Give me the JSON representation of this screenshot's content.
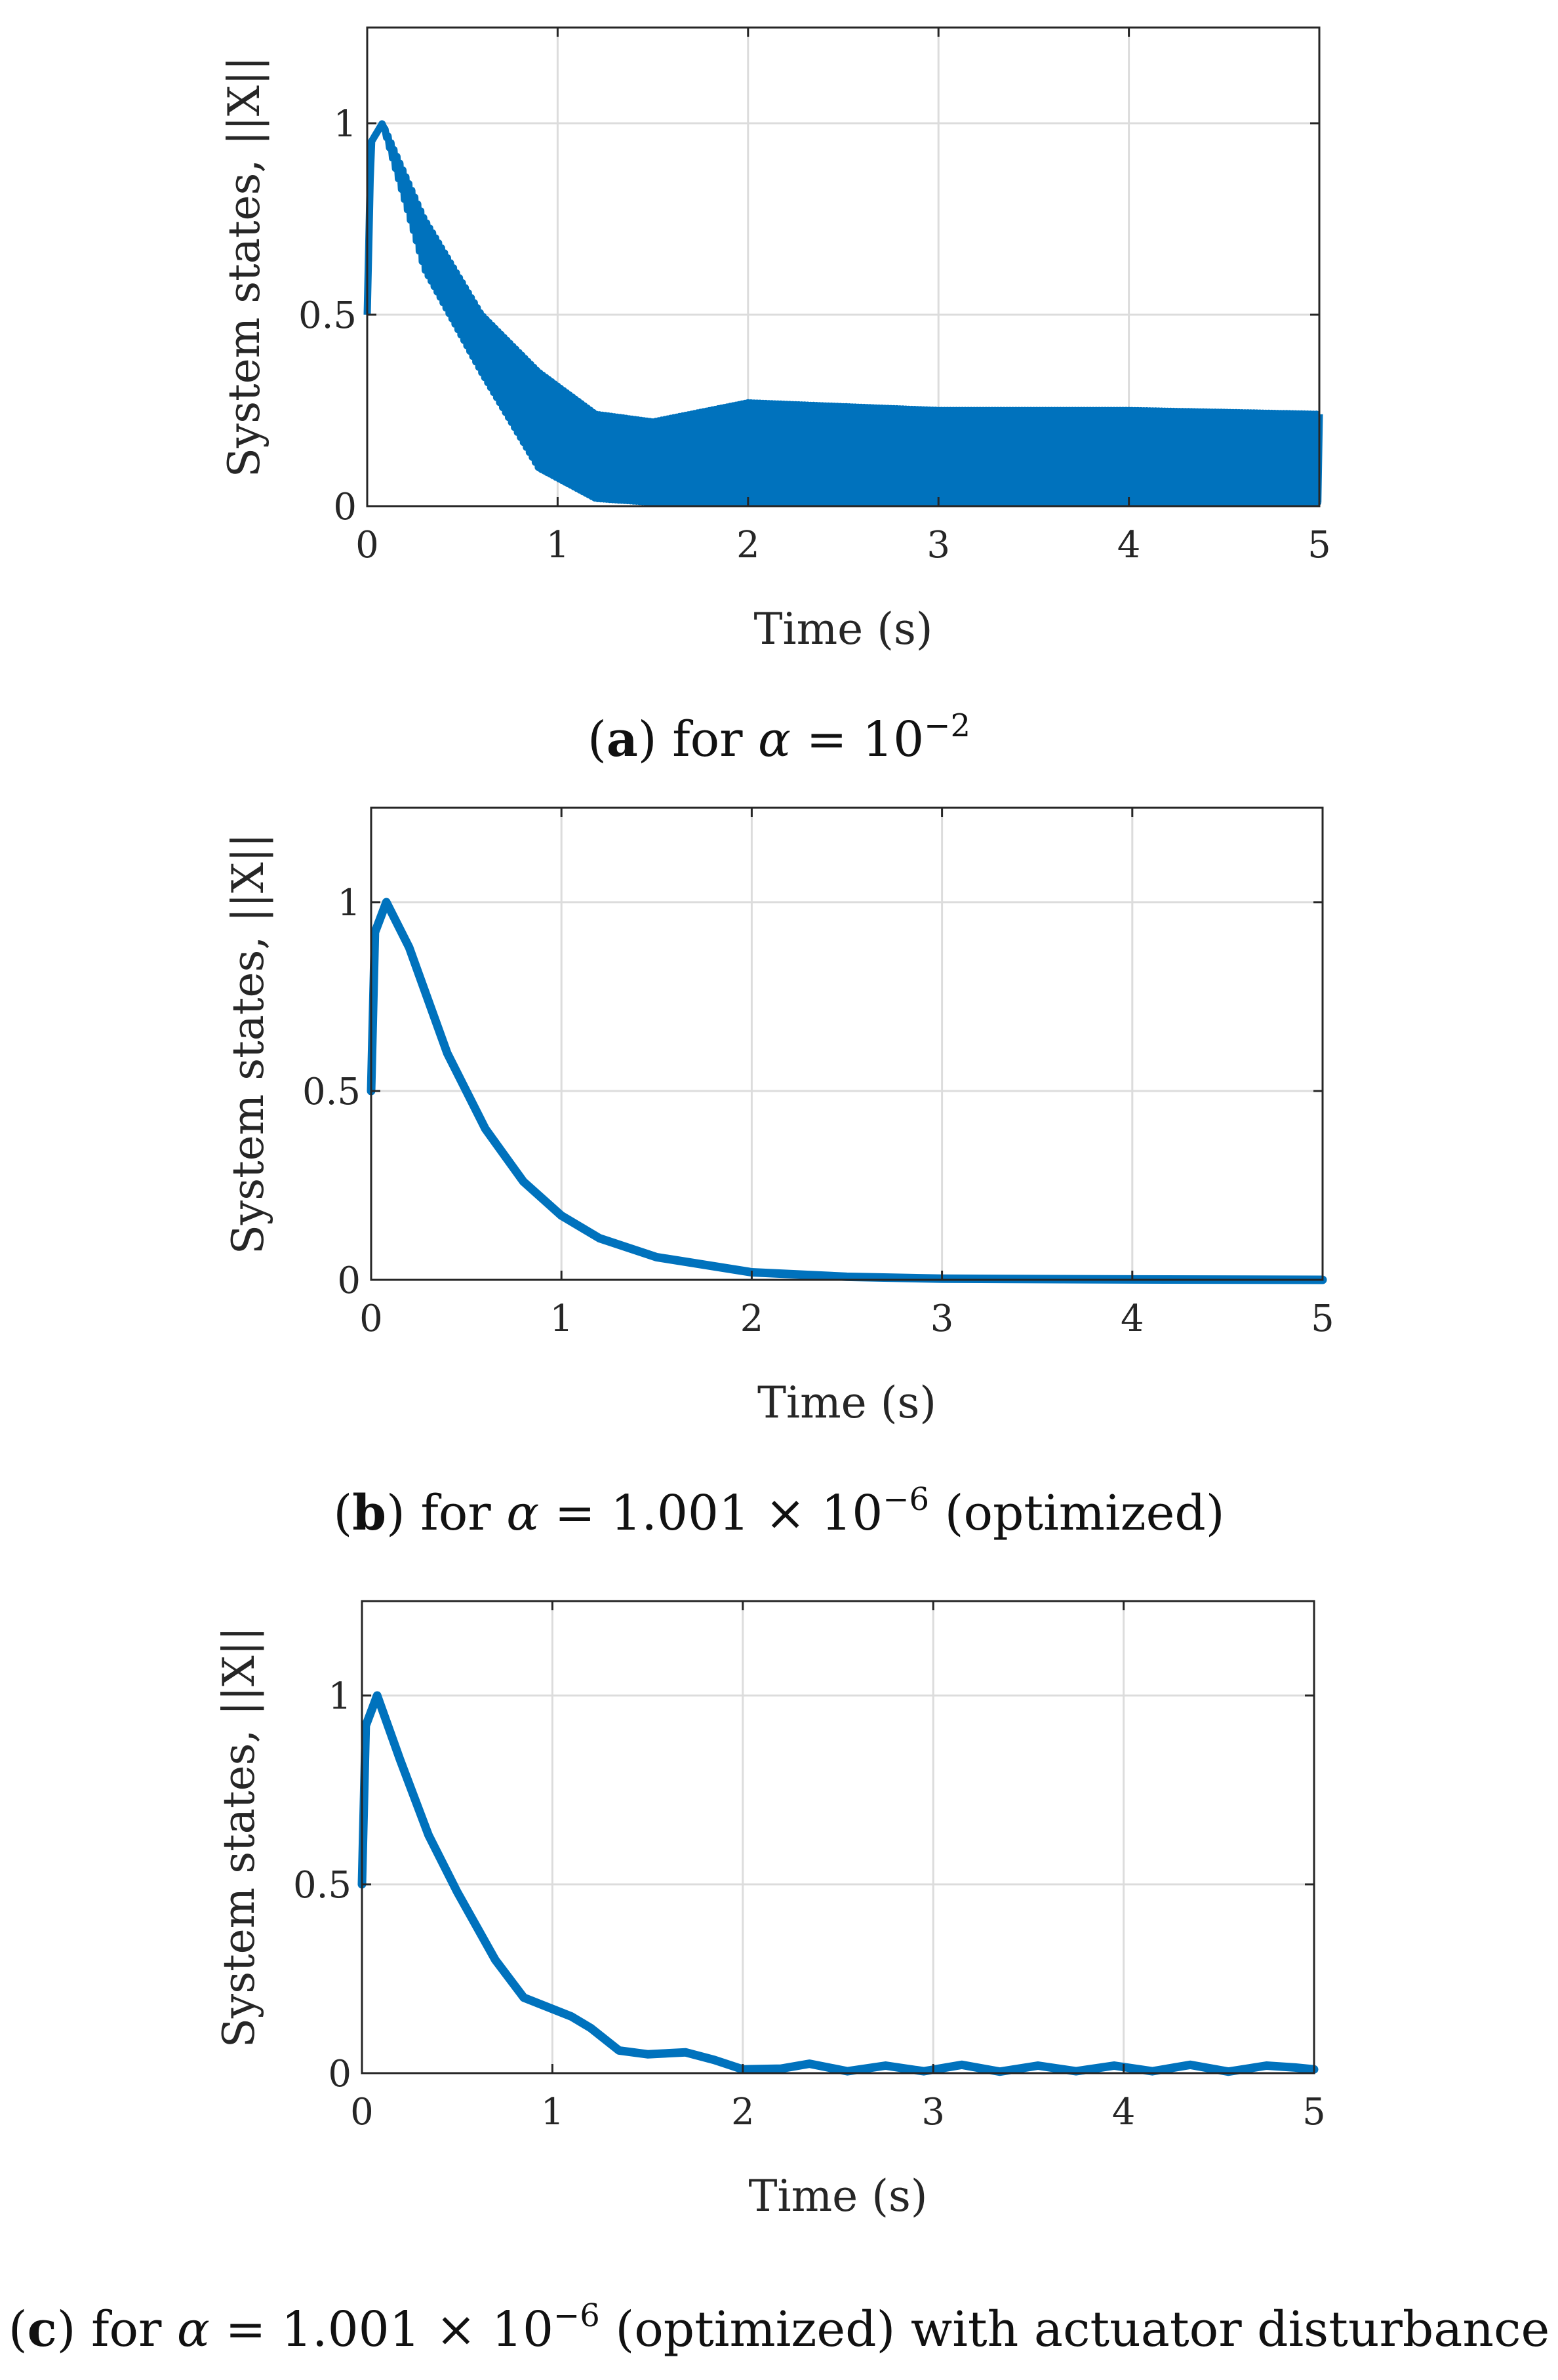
{
  "colors": {
    "series": "#0072BD",
    "grid": "#dcdcdc",
    "axis": "#262626"
  },
  "chart_data": [
    {
      "type": "line",
      "xlabel": "Time (s)",
      "ylabel": "System states, ||X||",
      "xlim": [
        0,
        5
      ],
      "ylim": [
        0,
        1.25
      ],
      "xticks": [
        "0",
        "1",
        "2",
        "3",
        "4",
        "5"
      ],
      "yticks": [
        "0",
        "0.5",
        "1"
      ],
      "grid": true,
      "caption": {
        "letter": "a",
        "text": "for",
        "param": "α",
        "eq": "= 10",
        "exp": "−2",
        "tail": ""
      },
      "behavior": "oscillating",
      "series": [
        {
          "x": [
            0,
            0.02,
            0.08,
            0.3,
            0.6,
            0.9,
            1.2,
            1.5,
            2.0,
            3.0,
            4.0,
            5.0
          ],
          "y": [
            0.5,
            0.95,
            1.0,
            0.68,
            0.42,
            0.22,
            0.14,
            0.14,
            0.14,
            0.13,
            0.12,
            0.12
          ],
          "band_upper": [
            0.5,
            0.95,
            1.0,
            0.75,
            0.5,
            0.35,
            0.24,
            0.22,
            0.27,
            0.25,
            0.25,
            0.24
          ],
          "band_lower": [
            0.5,
            0.95,
            1.0,
            0.62,
            0.35,
            0.1,
            0.02,
            0.01,
            0.01,
            0.01,
            0.01,
            0.01
          ]
        }
      ]
    },
    {
      "type": "line",
      "xlabel": "Time (s)",
      "ylabel": "System states, ||X||",
      "xlim": [
        0,
        5
      ],
      "ylim": [
        0,
        1.25
      ],
      "xticks": [
        "0",
        "1",
        "2",
        "3",
        "4",
        "5"
      ],
      "yticks": [
        "0",
        "0.5",
        "1"
      ],
      "grid": true,
      "caption": {
        "letter": "b",
        "text": "for",
        "param": "α",
        "eq": "= 1.001 × 10",
        "exp": "−6",
        "tail": "(optimized)"
      },
      "behavior": "smooth",
      "series": [
        {
          "x": [
            0,
            0.02,
            0.08,
            0.2,
            0.4,
            0.6,
            0.8,
            1.0,
            1.2,
            1.5,
            2.0,
            2.5,
            3.0,
            4.0,
            5.0
          ],
          "y": [
            0.5,
            0.92,
            1.0,
            0.88,
            0.6,
            0.4,
            0.26,
            0.17,
            0.11,
            0.06,
            0.02,
            0.008,
            0.003,
            0.001,
            0.0
          ]
        }
      ]
    },
    {
      "type": "line",
      "xlabel": "Time (s)",
      "ylabel": "System states, ||X||",
      "xlim": [
        0,
        5
      ],
      "ylim": [
        0,
        1.25
      ],
      "xticks": [
        "0",
        "1",
        "2",
        "3",
        "4",
        "5"
      ],
      "yticks": [
        "0",
        "0.5",
        "1"
      ],
      "grid": true,
      "caption": {
        "letter": "c",
        "text": "for",
        "param": "α",
        "eq": "= 1.001 × 10",
        "exp": "−6",
        "tail": "(optimized) with actuator disturbance"
      },
      "behavior": "damped",
      "series": [
        {
          "x": [
            0,
            0.02,
            0.08,
            0.2,
            0.35,
            0.5,
            0.7,
            0.85,
            1.0,
            1.1,
            1.2,
            1.35,
            1.5,
            1.7,
            1.85,
            2.0,
            2.2,
            2.35,
            2.55,
            2.75,
            2.95,
            3.15,
            3.35,
            3.55,
            3.75,
            3.95,
            4.15,
            4.35,
            4.55,
            4.75,
            4.9,
            5.0
          ],
          "y": [
            0.5,
            0.92,
            1.0,
            0.83,
            0.63,
            0.48,
            0.3,
            0.2,
            0.17,
            0.15,
            0.12,
            0.06,
            0.05,
            0.055,
            0.035,
            0.01,
            0.012,
            0.025,
            0.005,
            0.02,
            0.005,
            0.022,
            0.004,
            0.02,
            0.005,
            0.02,
            0.005,
            0.022,
            0.004,
            0.02,
            0.015,
            0.01
          ]
        }
      ]
    }
  ]
}
